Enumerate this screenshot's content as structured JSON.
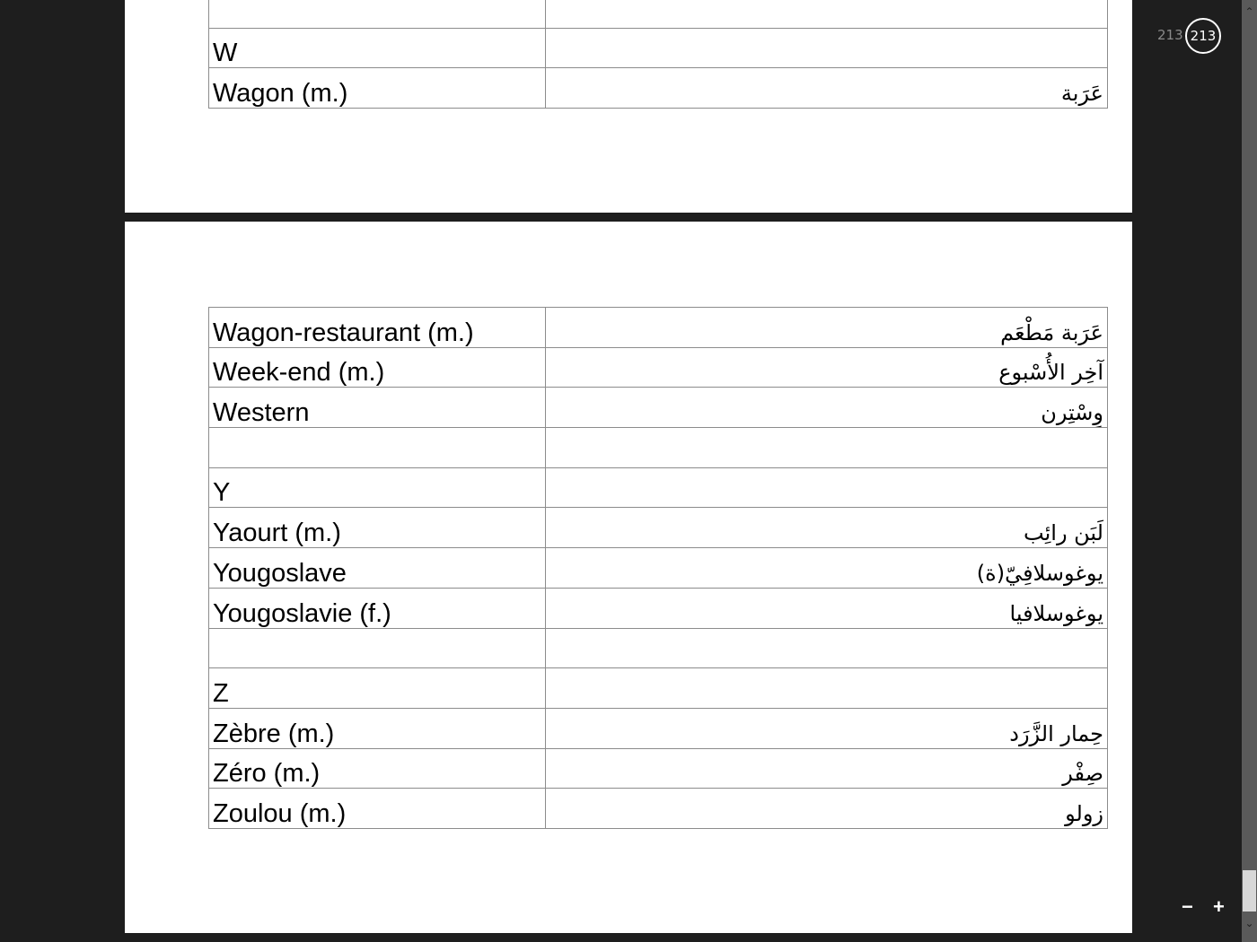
{
  "viewer": {
    "page_label": "213",
    "current_page": "213",
    "zoom_out": "−",
    "zoom_in": "+",
    "scroll_up": "⌃",
    "scroll_down": "⌄"
  },
  "page1_rows": [
    {
      "fr": "",
      "ar": ""
    },
    {
      "fr": "W",
      "ar": ""
    },
    {
      "fr": "Wagon (m.)",
      "ar": "عَرَبة"
    }
  ],
  "page2_rows": [
    {
      "fr": "Wagon-restaurant (m.)",
      "ar": "عَرَبة مَطْعَم"
    },
    {
      "fr": "Week-end (m.)",
      "ar": "آخِر الأُسْبوع"
    },
    {
      "fr": "Western",
      "ar": "وِسْتِرن"
    },
    {
      "fr": "",
      "ar": ""
    },
    {
      "fr": "Y",
      "ar": ""
    },
    {
      "fr": "Yaourt (m.)",
      "ar": "لَبَن رائِب"
    },
    {
      "fr": "Yougoslave",
      "ar": "يوغوسلافِيّ(ة)"
    },
    {
      "fr": "Yougoslavie (f.)",
      "ar": "يوغوسلافيا"
    },
    {
      "fr": "",
      "ar": ""
    },
    {
      "fr": "Z",
      "ar": ""
    },
    {
      "fr": "Zèbre (m.)",
      "ar": "حِمار الزَّرَد"
    },
    {
      "fr": "Zéro (m.)",
      "ar": "صِفْر"
    },
    {
      "fr": "Zoulou (m.)",
      "ar": "زولو"
    }
  ]
}
